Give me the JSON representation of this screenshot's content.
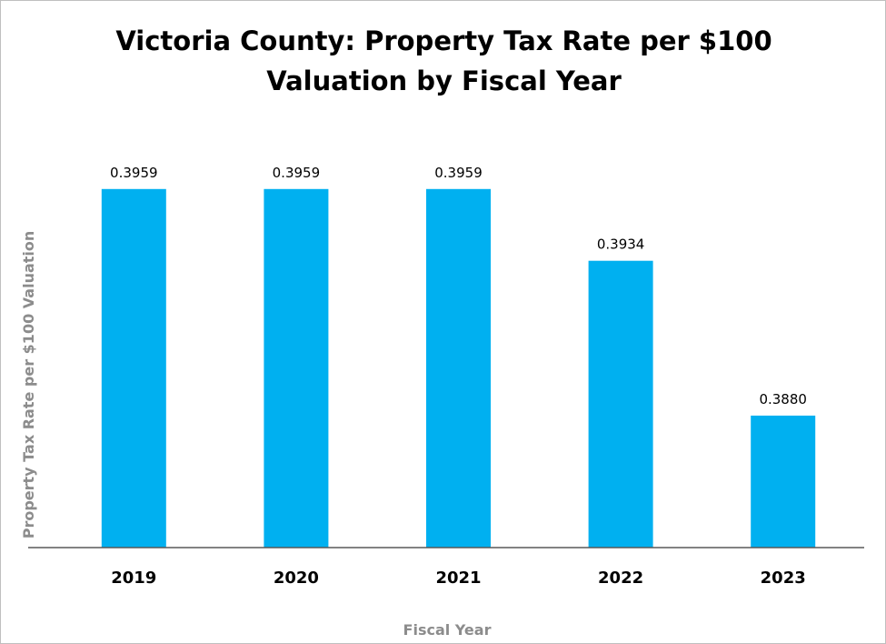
{
  "chart_data": {
    "type": "bar",
    "title_lines": [
      "Victoria County: Property Tax Rate per $100",
      "Valuation by Fiscal Year"
    ],
    "xlabel": "Fiscal Year",
    "ylabel": "Property Tax Rate per $100 Valuation",
    "categories": [
      "2019",
      "2020",
      "2021",
      "2022",
      "2023"
    ],
    "values": [
      0.3959,
      0.3959,
      0.3959,
      0.3934,
      0.388
    ],
    "value_labels": [
      "0.3959",
      "0.3959",
      "0.3959",
      "0.3934",
      "0.3880"
    ],
    "ylim": [
      0.3834,
      0.3971
    ],
    "grid": false,
    "legend": "none",
    "bar_color": "#00b0f0",
    "axis_title_color": "#8c8c8c",
    "axis_line_color": "#595959"
  }
}
